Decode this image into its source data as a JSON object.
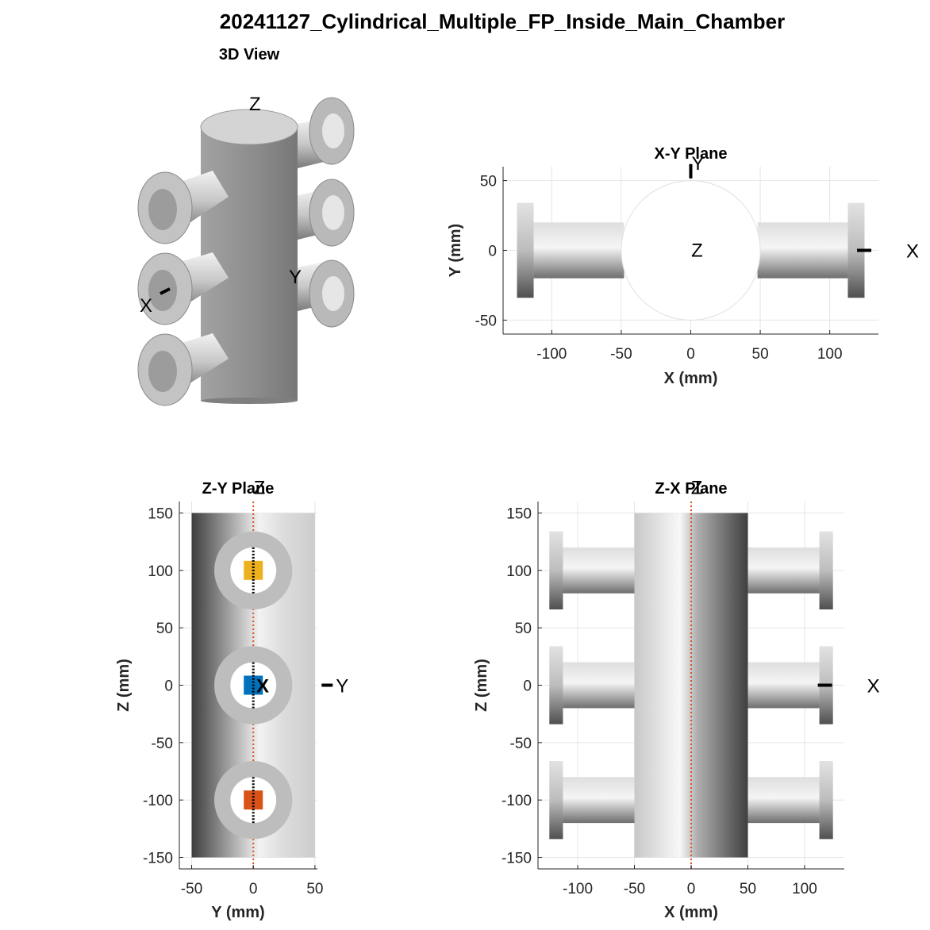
{
  "figure": {
    "title": "20241127_Cylindrical_Multiple_FP_Inside_Main_Chamber"
  },
  "chart_data": [
    {
      "type": "3d-render",
      "title": "3D View",
      "axis_markers": [
        "Z",
        "Y",
        "X"
      ],
      "chamber": {
        "kind": "cylinder",
        "radius_mm": 50,
        "z_range_mm": [
          -150,
          150
        ]
      },
      "ports": [
        {
          "side": "-Y",
          "z_mm": 100
        },
        {
          "side": "-Y",
          "z_mm": 0
        },
        {
          "side": "-Y",
          "z_mm": -100
        },
        {
          "side": "+X",
          "z_mm": 100
        },
        {
          "side": "+X",
          "z_mm": 0
        },
        {
          "side": "+X",
          "z_mm": -100
        }
      ]
    },
    {
      "type": "projection",
      "title": "X-Y Plane",
      "xlabel": "X (mm)",
      "ylabel": "Y (mm)",
      "xlim": [
        -135,
        135
      ],
      "ylim": [
        -60,
        60
      ],
      "xticks": [
        -100,
        -50,
        0,
        50,
        100
      ],
      "yticks": [
        -50,
        0,
        50
      ],
      "grid": true,
      "axis_markers": [
        {
          "label": "Y",
          "x": 0,
          "y": 55
        },
        {
          "label": "Z",
          "x": 0,
          "y": 0
        },
        {
          "label": "X",
          "x": 155,
          "y": 0
        }
      ],
      "chamber": {
        "kind": "circle",
        "center": [
          0,
          0
        ],
        "radius": 50
      },
      "tubes": [
        {
          "x_range": [
            -113,
            -48
          ],
          "y_range": [
            -20,
            20
          ]
        },
        {
          "x_range": [
            48,
            113
          ],
          "y_range": [
            -20,
            20
          ]
        }
      ],
      "flanges": [
        {
          "x_range": [
            -125,
            -113
          ],
          "y_range": [
            -34,
            34
          ]
        },
        {
          "x_range": [
            113,
            125
          ],
          "y_range": [
            -34,
            34
          ]
        }
      ]
    },
    {
      "type": "projection",
      "title": "Z-Y Plane",
      "xlabel": "Y (mm)",
      "ylabel": "Z (mm)",
      "xlim": [
        -60,
        52
      ],
      "ylim": [
        -160,
        160
      ],
      "xticks": [
        -50,
        0,
        50
      ],
      "yticks": [
        -150,
        -100,
        -50,
        0,
        50,
        100,
        150
      ],
      "grid": true,
      "axis_markers": [
        {
          "label": "Z",
          "x": 5,
          "y": 170
        },
        {
          "label": "X",
          "x": 5,
          "y": 0
        },
        {
          "label": "Y",
          "x": 67,
          "y": 0
        }
      ],
      "chamber": {
        "kind": "rectangle",
        "x_range": [
          -50,
          50
        ],
        "y_range": [
          -150,
          150
        ]
      },
      "ports": [
        {
          "center": [
            0,
            100
          ],
          "outer_radius": 34,
          "inner_radius": 20,
          "marker_color": "#EDB120"
        },
        {
          "center": [
            0,
            0
          ],
          "outer_radius": 34,
          "inner_radius": 20,
          "marker_color": "#0072BD"
        },
        {
          "center": [
            0,
            -100
          ],
          "outer_radius": 34,
          "inner_radius": 20,
          "marker_color": "#D95319"
        }
      ]
    },
    {
      "type": "projection",
      "title": "Z-X Plane",
      "xlabel": "X (mm)",
      "ylabel": "Z (mm)",
      "xlim": [
        -135,
        135
      ],
      "ylim": [
        -160,
        160
      ],
      "xticks": [
        -100,
        -50,
        0,
        50,
        100
      ],
      "yticks": [
        -150,
        -100,
        -50,
        0,
        50,
        100,
        150
      ],
      "grid": true,
      "axis_markers": [
        {
          "label": "Z",
          "x": 5,
          "y": 170
        },
        {
          "label": "X",
          "x": 155,
          "y": 0
        }
      ],
      "chamber": {
        "kind": "rectangle",
        "x_range": [
          -50,
          50
        ],
        "y_range": [
          -150,
          150
        ]
      },
      "ports": [
        {
          "z": 100
        },
        {
          "z": 0
        },
        {
          "z": -100
        }
      ],
      "tube": {
        "inner_x": 48,
        "outer_x": 113,
        "half_height": 20
      },
      "flange": {
        "inner_x": 113,
        "outer_x": 125,
        "half_height": 34
      }
    }
  ]
}
